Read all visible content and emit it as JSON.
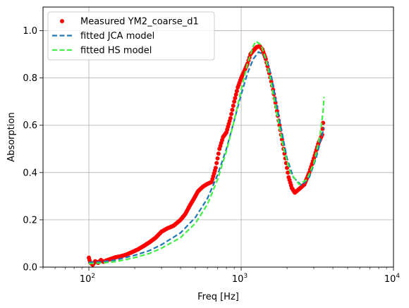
{
  "chart_data": {
    "type": "line",
    "xlabel": "Freq [Hz]",
    "ylabel": "Absorption",
    "xscale": "log",
    "xlim": [
      50,
      10000
    ],
    "ylim": [
      0,
      1.1
    ],
    "grid": true,
    "legend_position": "top-left",
    "x_ticks": [
      {
        "value": 100,
        "base": "10",
        "exp": "2"
      },
      {
        "value": 1000,
        "base": "10",
        "exp": "3"
      },
      {
        "value": 10000,
        "base": "10",
        "exp": "4"
      }
    ],
    "y_ticks": [
      {
        "value": 0.0,
        "label": "0.0"
      },
      {
        "value": 0.2,
        "label": "0.2"
      },
      {
        "value": 0.4,
        "label": "0.4"
      },
      {
        "value": 0.6,
        "label": "0.6"
      },
      {
        "value": 0.8,
        "label": "0.8"
      },
      {
        "value": 1.0,
        "label": "1.0"
      }
    ],
    "series": [
      {
        "name": "Measured YM2_coarse_d1",
        "style": "dots",
        "color": "#ff0000",
        "points": [
          [
            100,
            0.04
          ],
          [
            102,
            0.02
          ],
          [
            106,
            0.01
          ],
          [
            110,
            0.025
          ],
          [
            115,
            0.018
          ],
          [
            120,
            0.03
          ],
          [
            125,
            0.022
          ],
          [
            130,
            0.028
          ],
          [
            140,
            0.035
          ],
          [
            150,
            0.042
          ],
          [
            160,
            0.045
          ],
          [
            175,
            0.052
          ],
          [
            190,
            0.062
          ],
          [
            210,
            0.075
          ],
          [
            230,
            0.09
          ],
          [
            250,
            0.105
          ],
          [
            275,
            0.125
          ],
          [
            300,
            0.15
          ],
          [
            330,
            0.165
          ],
          [
            360,
            0.175
          ],
          [
            400,
            0.2
          ],
          [
            430,
            0.225
          ],
          [
            460,
            0.26
          ],
          [
            490,
            0.29
          ],
          [
            520,
            0.32
          ],
          [
            560,
            0.34
          ],
          [
            600,
            0.352
          ],
          [
            640,
            0.36
          ],
          [
            680,
            0.42
          ],
          [
            720,
            0.5
          ],
          [
            760,
            0.55
          ],
          [
            800,
            0.57
          ],
          [
            850,
            0.63
          ],
          [
            900,
            0.7
          ],
          [
            950,
            0.76
          ],
          [
            1000,
            0.8
          ],
          [
            1050,
            0.83
          ],
          [
            1100,
            0.86
          ],
          [
            1150,
            0.9
          ],
          [
            1200,
            0.915
          ],
          [
            1260,
            0.93
          ],
          [
            1320,
            0.935
          ],
          [
            1380,
            0.92
          ],
          [
            1450,
            0.88
          ],
          [
            1530,
            0.82
          ],
          [
            1620,
            0.75
          ],
          [
            1720,
            0.66
          ],
          [
            1830,
            0.56
          ],
          [
            1950,
            0.46
          ],
          [
            2050,
            0.38
          ],
          [
            2150,
            0.335
          ],
          [
            2250,
            0.315
          ],
          [
            2400,
            0.33
          ],
          [
            2600,
            0.35
          ],
          [
            2800,
            0.4
          ],
          [
            3000,
            0.46
          ],
          [
            3200,
            0.52
          ],
          [
            3400,
            0.56
          ],
          [
            3450,
            0.61
          ]
        ]
      },
      {
        "name": "fitted JCA model",
        "style": "dashed",
        "color": "#1f77b4",
        "points": [
          [
            100,
            0.02
          ],
          [
            120,
            0.022
          ],
          [
            150,
            0.03
          ],
          [
            200,
            0.05
          ],
          [
            250,
            0.07
          ],
          [
            300,
            0.095
          ],
          [
            400,
            0.145
          ],
          [
            500,
            0.21
          ],
          [
            600,
            0.29
          ],
          [
            700,
            0.39
          ],
          [
            800,
            0.5
          ],
          [
            900,
            0.62
          ],
          [
            1000,
            0.73
          ],
          [
            1100,
            0.82
          ],
          [
            1200,
            0.88
          ],
          [
            1300,
            0.91
          ],
          [
            1400,
            0.9
          ],
          [
            1500,
            0.86
          ],
          [
            1600,
            0.79
          ],
          [
            1800,
            0.61
          ],
          [
            2000,
            0.46
          ],
          [
            2200,
            0.38
          ],
          [
            2500,
            0.345
          ],
          [
            2800,
            0.38
          ],
          [
            3100,
            0.46
          ],
          [
            3400,
            0.56
          ],
          [
            3500,
            0.59
          ]
        ]
      },
      {
        "name": "fitted HS model",
        "style": "dashed",
        "color": "#44ee44",
        "points": [
          [
            100,
            0.015
          ],
          [
            120,
            0.017
          ],
          [
            150,
            0.023
          ],
          [
            200,
            0.04
          ],
          [
            250,
            0.058
          ],
          [
            300,
            0.08
          ],
          [
            400,
            0.125
          ],
          [
            500,
            0.185
          ],
          [
            600,
            0.265
          ],
          [
            700,
            0.37
          ],
          [
            800,
            0.49
          ],
          [
            900,
            0.62
          ],
          [
            1000,
            0.75
          ],
          [
            1100,
            0.86
          ],
          [
            1200,
            0.935
          ],
          [
            1250,
            0.955
          ],
          [
            1350,
            0.94
          ],
          [
            1450,
            0.88
          ],
          [
            1550,
            0.8
          ],
          [
            1700,
            0.66
          ],
          [
            1900,
            0.5
          ],
          [
            2100,
            0.4
          ],
          [
            2400,
            0.35
          ],
          [
            2700,
            0.37
          ],
          [
            3000,
            0.44
          ],
          [
            3300,
            0.56
          ],
          [
            3450,
            0.66
          ],
          [
            3500,
            0.72
          ]
        ]
      }
    ]
  }
}
